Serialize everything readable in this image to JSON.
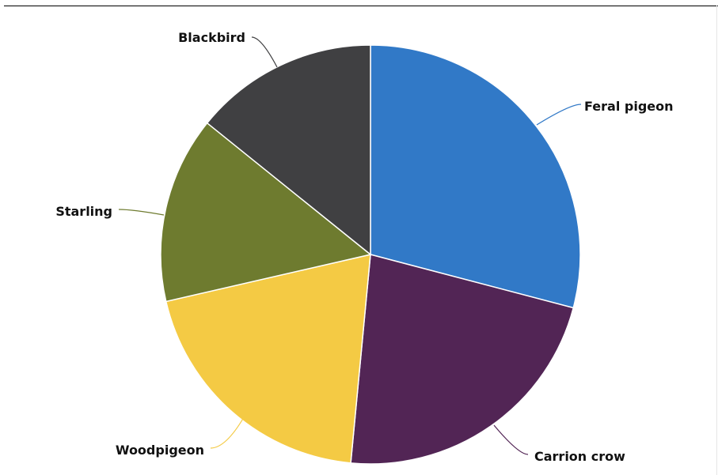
{
  "chart_data": {
    "type": "pie",
    "title": "",
    "slices": [
      {
        "label": "Feral pigeon",
        "value": 29.1,
        "color": "#3179c7"
      },
      {
        "label": "Carrion crow",
        "value": 22.4,
        "color": "#522555"
      },
      {
        "label": "Woodpigeon",
        "value": 19.9,
        "color": "#f4ca44"
      },
      {
        "label": "Starling",
        "value": 14.4,
        "color": "#6e7b2f"
      },
      {
        "label": "Blackbird",
        "value": 14.2,
        "color": "#404042"
      }
    ],
    "start_angle_deg": 0,
    "direction": "clockwise",
    "legend": "none",
    "data_labels": "outside-with-leader-lines"
  }
}
